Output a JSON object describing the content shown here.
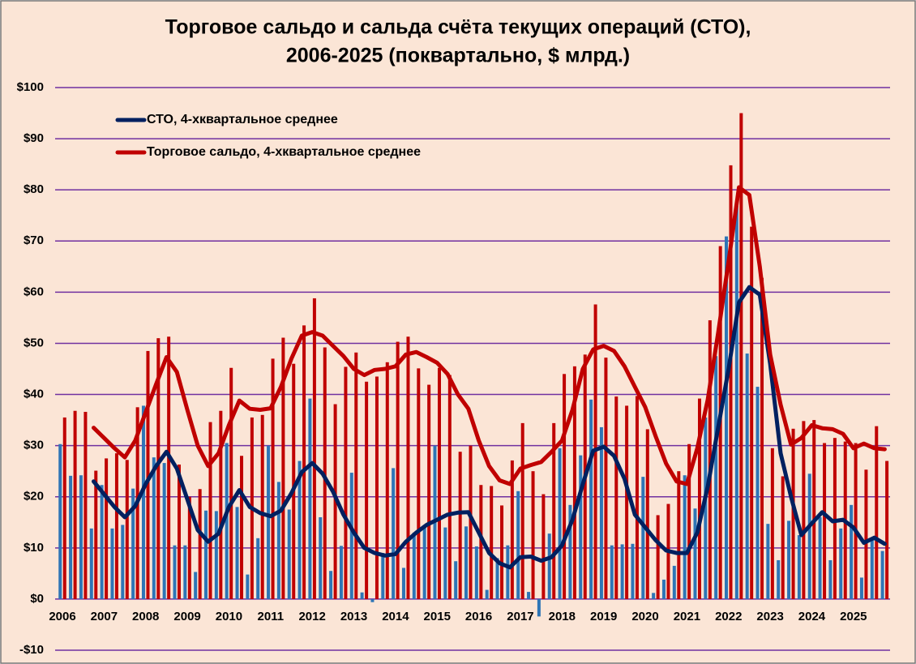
{
  "chart_data": {
    "type": "bar-line",
    "title": [
      "Торговое сальдо и сальда счёта текущих операций (СТО),",
      "2006-2025 (поквартально, $ млрд.)"
    ],
    "categories": [
      "2006",
      null,
      null,
      null,
      "2007",
      null,
      null,
      null,
      "2008",
      null,
      null,
      null,
      "2009",
      null,
      null,
      null,
      "2010",
      null,
      null,
      null,
      "2011",
      null,
      null,
      null,
      "2012",
      null,
      null,
      null,
      "2013",
      null,
      null,
      null,
      "2014",
      null,
      null,
      null,
      "2015",
      null,
      null,
      null,
      "2016",
      null,
      null,
      null,
      "2017",
      null,
      null,
      null,
      "2018",
      null,
      null,
      null,
      "2019",
      null,
      null,
      null,
      "2020",
      null,
      null,
      null,
      "2021",
      null,
      null,
      null,
      "2022",
      null,
      null,
      null,
      "2023",
      null,
      null,
      null,
      "2024",
      null,
      null,
      null,
      "2025",
      null,
      null,
      null
    ],
    "ylim": [
      -10,
      100
    ],
    "yticks": [
      {
        "value": -10,
        "label": "-$10"
      },
      {
        "value": 0,
        "label": "$0"
      },
      {
        "value": 10,
        "label": "$10"
      },
      {
        "value": 20,
        "label": "$20"
      },
      {
        "value": 30,
        "label": "$30"
      },
      {
        "value": 40,
        "label": "$40"
      },
      {
        "value": 50,
        "label": "$50"
      },
      {
        "value": 60,
        "label": "$60"
      },
      {
        "value": 70,
        "label": "$70"
      },
      {
        "value": 80,
        "label": "$80"
      },
      {
        "value": 90,
        "label": "$90"
      },
      {
        "value": 100,
        "label": "$100"
      }
    ],
    "grid": true,
    "grid_color": "#7030a0",
    "legend": "top-left",
    "series": [
      {
        "kind": "bar",
        "color": "#2e75b6",
        "values": [
          30.3,
          24.1,
          24.2,
          13.8,
          22.3,
          13.8,
          14.5,
          21.6,
          37.8,
          27.7,
          26.6,
          10.5,
          10.5,
          5.3,
          17.3,
          17.2,
          30.5,
          18.0,
          4.8,
          11.9,
          30.0,
          22.9,
          17.5,
          27.0,
          39.2,
          16.0,
          5.5,
          10.4,
          24.7,
          1.3,
          -0.6,
          9.0,
          25.6,
          6.1,
          13.0,
          14.0,
          30.0,
          14.0,
          7.4,
          14.2,
          10.3,
          1.8,
          8.0,
          10.5,
          21.1,
          1.4,
          -3.4,
          12.8,
          29.5,
          18.4,
          28.1,
          39.0,
          33.6,
          10.5,
          10.7,
          10.8,
          23.9,
          1.2,
          3.8,
          6.5,
          24.2,
          17.7,
          35.5,
          47.5,
          70.9,
          77.2,
          48.0,
          41.5,
          14.7,
          7.6,
          15.3,
          12.5,
          24.5,
          16.0,
          7.6,
          13.8,
          18.4,
          4.2,
          11.5,
          9.4
        ]
      },
      {
        "kind": "bar",
        "color": "#c00000",
        "values": [
          35.5,
          36.8,
          36.6,
          25.1,
          27.5,
          28.5,
          27.2,
          37.5,
          48.5,
          51.0,
          51.3,
          26.3,
          20.0,
          21.5,
          34.6,
          36.8,
          45.2,
          28.0,
          35.5,
          36.0,
          47.0,
          51.1,
          46.0,
          53.5,
          58.8,
          49.2,
          38.1,
          45.4,
          48.2,
          42.5,
          43.5,
          46.3,
          50.3,
          51.3,
          45.1,
          41.9,
          45.2,
          43.8,
          28.8,
          30.0,
          22.3,
          22.1,
          18.3,
          27.1,
          34.4,
          25.0,
          20.5,
          34.4,
          44.0,
          45.5,
          47.8,
          57.6,
          47.2,
          39.6,
          37.8,
          39.7,
          33.2,
          16.4,
          18.6,
          25.0,
          30.3,
          39.2,
          54.5,
          69.0,
          84.8,
          95.0,
          72.8,
          62.8,
          29.5,
          24.0,
          33.3,
          34.8,
          35.0,
          30.5,
          31.5,
          30.8,
          30.5,
          25.3,
          33.8,
          27.0
        ]
      },
      {
        "kind": "line",
        "name": "СТО, 4-хквартальное среднее",
        "color": "#002060",
        "values": [
          null,
          null,
          null,
          23.0,
          20.5,
          18.0,
          16.0,
          18.2,
          22.5,
          26.0,
          28.8,
          25.5,
          19.5,
          13.5,
          11.2,
          12.8,
          18.0,
          21.3,
          18.0,
          16.8,
          16.2,
          17.3,
          20.7,
          24.8,
          26.6,
          24.5,
          21.0,
          16.5,
          13.0,
          10.0,
          9.0,
          8.5,
          8.8,
          11.2,
          13.0,
          14.5,
          15.5,
          16.5,
          16.9,
          17.0,
          13.0,
          9.0,
          7.0,
          6.2,
          8.2,
          8.3,
          7.5,
          8.2,
          10.5,
          15.5,
          22.5,
          29.0,
          29.8,
          28.0,
          23.5,
          16.5,
          14.0,
          11.5,
          9.5,
          9.0,
          9.0,
          13.0,
          22.0,
          33.5,
          45.0,
          58.0,
          61.0,
          59.5,
          46.0,
          28.5,
          20.0,
          12.5,
          14.8,
          17.0,
          15.2,
          15.5,
          14.0,
          11.0,
          12.0,
          10.8
        ]
      },
      {
        "kind": "line",
        "name": "Торговое сальдо, 4-хквартальное среднее",
        "color": "#c00000",
        "values": [
          null,
          null,
          null,
          33.5,
          31.5,
          29.5,
          27.7,
          31.0,
          36.5,
          42.0,
          47.3,
          44.4,
          37.0,
          30.0,
          26.0,
          28.5,
          34.0,
          38.8,
          37.2,
          37.0,
          37.3,
          41.5,
          47.0,
          51.5,
          52.2,
          51.5,
          49.5,
          47.5,
          45.0,
          43.8,
          44.8,
          45.0,
          45.5,
          47.8,
          48.3,
          47.3,
          46.2,
          44.0,
          40.0,
          37.2,
          31.0,
          26.0,
          23.2,
          22.5,
          25.5,
          26.2,
          26.8,
          28.8,
          31.0,
          37.0,
          45.0,
          48.8,
          49.5,
          48.5,
          45.5,
          41.5,
          37.5,
          31.8,
          26.5,
          23.0,
          22.5,
          29.5,
          39.0,
          52.0,
          66.0,
          80.5,
          79.0,
          65.0,
          47.8,
          38.0,
          30.2,
          31.5,
          34.0,
          33.4,
          33.2,
          32.3,
          29.5,
          30.4,
          29.5,
          29.3
        ]
      }
    ]
  }
}
